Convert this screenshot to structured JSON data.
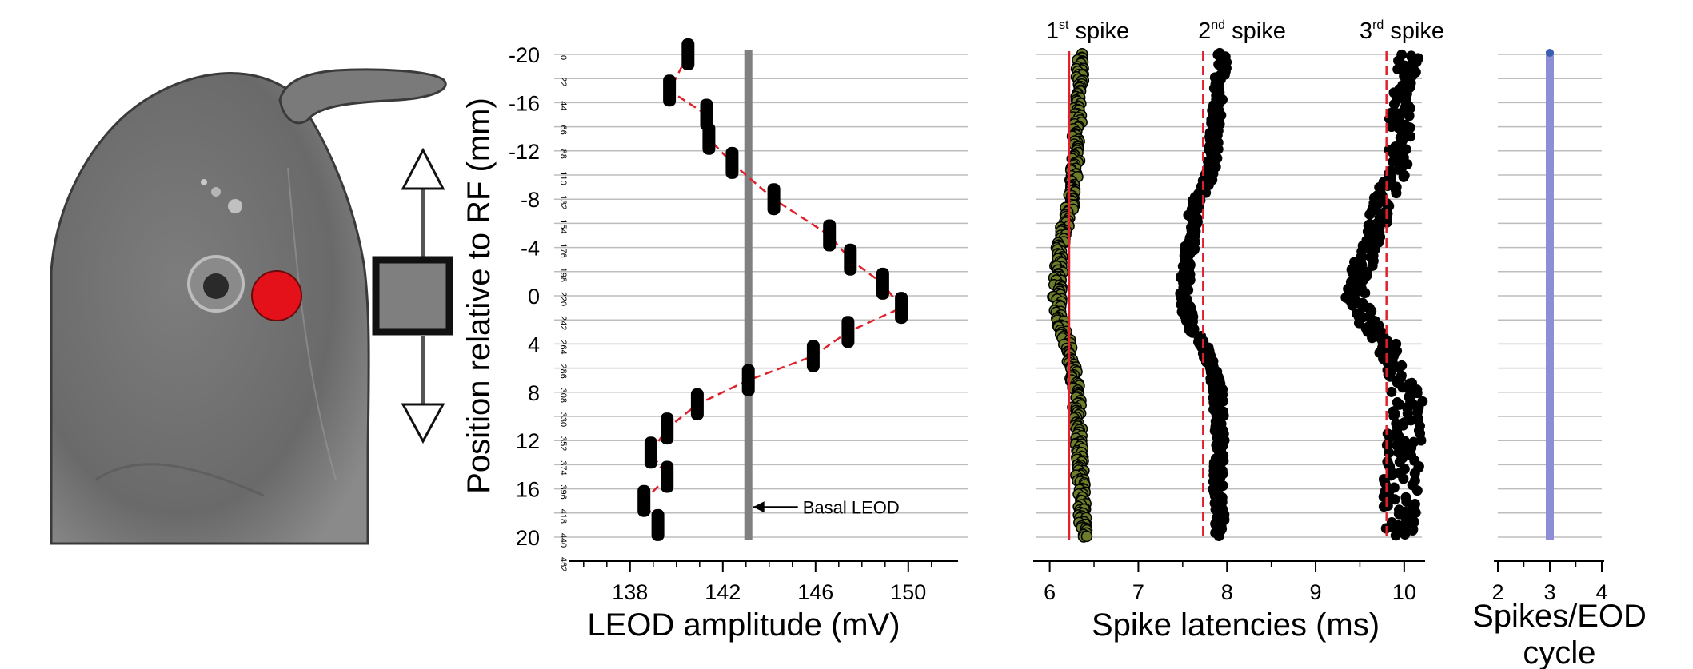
{
  "chart_data": [
    {
      "type": "scatter",
      "panel": "amplitude",
      "ylabel": "Position relative to RF (mm)",
      "xlabel": "LEOD amplitude (mV)",
      "y_ticks": [
        "-20",
        "-16",
        "-12",
        "-8",
        "-4",
        "0",
        "4",
        "8",
        "12",
        "16",
        "20"
      ],
      "x_ticks": [
        "138",
        "142",
        "146",
        "150"
      ],
      "xlim": [
        135.8,
        151.8
      ],
      "ylim": [
        -20,
        20
      ],
      "y_inverted": true,
      "grid": "horizontal",
      "cycle_labels": [
        "0",
        "22",
        "44",
        "66",
        "88",
        "110",
        "132",
        "154",
        "176",
        "198",
        "220",
        "242",
        "264",
        "286",
        "308",
        "330",
        "352",
        "374",
        "396",
        "418",
        "440",
        "462"
      ],
      "points": [
        {
          "y": -20,
          "x": 140.5
        },
        {
          "y": -17,
          "x": 139.7
        },
        {
          "y": -15,
          "x": 141.3
        },
        {
          "y": -13,
          "x": 141.4
        },
        {
          "y": -11,
          "x": 142.4
        },
        {
          "y": -8,
          "x": 144.2
        },
        {
          "y": -5,
          "x": 146.6
        },
        {
          "y": -3,
          "x": 147.5
        },
        {
          "y": -1,
          "x": 148.9
        },
        {
          "y": 1,
          "x": 149.7
        },
        {
          "y": 3,
          "x": 147.4
        },
        {
          "y": 5,
          "x": 145.9
        },
        {
          "y": 7,
          "x": 143.1
        },
        {
          "y": 9,
          "x": 140.9
        },
        {
          "y": 11,
          "x": 139.6
        },
        {
          "y": 13,
          "x": 138.9
        },
        {
          "y": 15,
          "x": 139.6
        },
        {
          "y": 17,
          "x": 138.6
        },
        {
          "y": 19,
          "x": 139.2
        }
      ],
      "basal_leod": 143.1,
      "annotation": "Basal LEOD"
    },
    {
      "type": "scatter",
      "panel": "latencies",
      "xlabel": "Spike latencies (ms)",
      "x_ticks": [
        "6",
        "7",
        "8",
        "9",
        "10"
      ],
      "xlim": [
        5.85,
        10.2
      ],
      "ylim": [
        -20,
        20
      ],
      "y_inverted": true,
      "grid": "horizontal",
      "series": [
        {
          "name_main": "1",
          "name_sup": "st",
          "name_rest": "spike",
          "mean_latency": 6.22,
          "profile": [
            [
              -20,
              6.35
            ],
            [
              -16,
              6.32
            ],
            [
              -12,
              6.3
            ],
            [
              -8,
              6.25
            ],
            [
              -6,
              6.18
            ],
            [
              -4,
              6.12
            ],
            [
              -2,
              6.1
            ],
            [
              0,
              6.08
            ],
            [
              2,
              6.12
            ],
            [
              4,
              6.2
            ],
            [
              8,
              6.3
            ],
            [
              12,
              6.33
            ],
            [
              16,
              6.35
            ],
            [
              20,
              6.38
            ]
          ],
          "jitter": 0.05
        },
        {
          "name_main": "2",
          "name_sup": "nd",
          "name_rest": "spike",
          "mean_latency": 7.73,
          "profile": [
            [
              -20,
              7.95
            ],
            [
              -16,
              7.9
            ],
            [
              -12,
              7.85
            ],
            [
              -10,
              7.8
            ],
            [
              -8,
              7.68
            ],
            [
              -6,
              7.6
            ],
            [
              -4,
              7.58
            ],
            [
              -2,
              7.55
            ],
            [
              0,
              7.5
            ],
            [
              2,
              7.58
            ],
            [
              4,
              7.72
            ],
            [
              6,
              7.82
            ],
            [
              8,
              7.9
            ],
            [
              12,
              7.92
            ],
            [
              16,
              7.9
            ],
            [
              20,
              7.92
            ]
          ],
          "jitter": 0.06
        },
        {
          "name_main": "3",
          "name_sup": "rd",
          "name_rest": "spike",
          "mean_latency": 9.8,
          "profile": [
            [
              -20,
              10.05
            ],
            [
              -16,
              9.95
            ],
            [
              -12,
              9.95
            ],
            [
              -10,
              9.9
            ],
            [
              -8,
              9.75
            ],
            [
              -6,
              9.7
            ],
            [
              -4,
              9.6
            ],
            [
              -2,
              9.5
            ],
            [
              0,
              9.45
            ],
            [
              2,
              9.55
            ],
            [
              4,
              9.8
            ],
            [
              6,
              9.9
            ],
            [
              8,
              10.05
            ],
            [
              12,
              10.0
            ],
            [
              16,
              9.95
            ],
            [
              20,
              10.0
            ]
          ],
          "jitter": 0.12
        }
      ]
    },
    {
      "type": "bar",
      "panel": "spikes_per_cycle",
      "xlabel_line1": "Spikes/EOD",
      "xlabel_line2": "cycle",
      "x_ticks": [
        "2",
        "3",
        "4"
      ],
      "xlim": [
        2,
        4
      ],
      "ylim": [
        -20,
        20
      ],
      "value": 3,
      "grid": "horizontal",
      "color": "#8e8ed6"
    }
  ],
  "colors": {
    "fit_line": "#e0202a",
    "marker": "#000000",
    "first_spike_fill": "#6b7d2a",
    "basal_line": "#808080",
    "grid": "#bdbdbd",
    "stimulus": "#e4101a"
  },
  "illustration": {
    "icons": [
      "fish-photo-icon",
      "stimulus-dot-icon",
      "electrode-icon",
      "up-arrow-icon",
      "down-arrow-icon"
    ]
  }
}
